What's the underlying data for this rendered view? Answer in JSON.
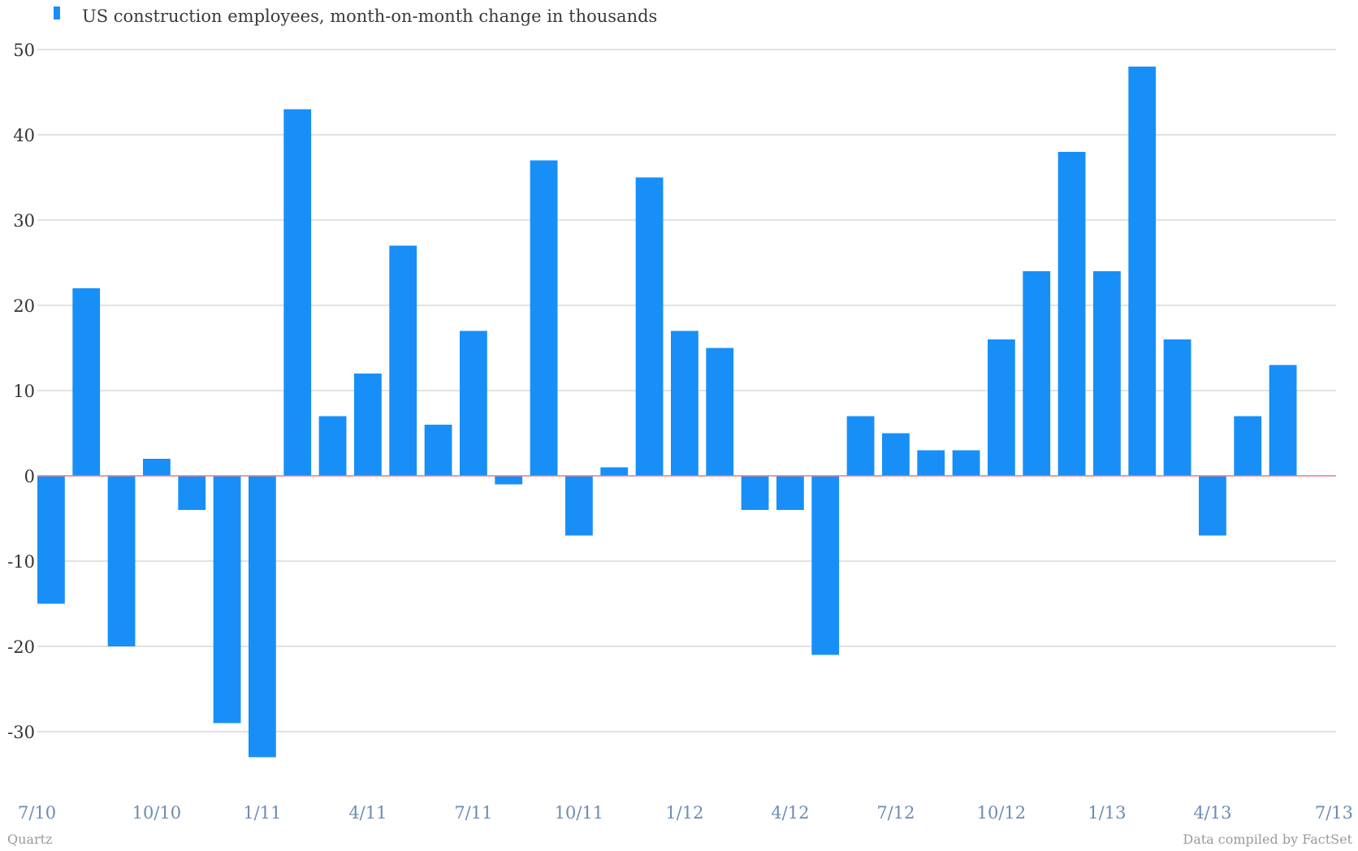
{
  "colors": {
    "bar": "#188ff7",
    "zero_line": "#e07b8e",
    "grid": "#c4c4c4",
    "x_tick_text": "#6b8cb3",
    "y_tick_text": "#333333",
    "credit_text": "#9a9a9a"
  },
  "legend": {
    "icon": "legend-swatch-icon",
    "label": "US construction employees, month-on-month change in thousands"
  },
  "footer": {
    "left": "Quartz",
    "right": "Data compiled by FactSet"
  },
  "chart_data": {
    "type": "bar",
    "title": "",
    "xlabel": "",
    "ylabel": "",
    "ylim": [
      -35,
      50
    ],
    "grid": true,
    "legend_position": "top-left",
    "y_ticks": [
      50,
      40,
      30,
      20,
      10,
      0,
      -10,
      -20,
      -30
    ],
    "y_tick_labels": [
      "50",
      "40",
      "30",
      "20",
      "10",
      "0",
      "-10",
      "-20",
      "-30"
    ],
    "x_tick_labels": [
      {
        "label": "7/10",
        "index": 0
      },
      {
        "label": "10/10",
        "index": 3
      },
      {
        "label": "1/11",
        "index": 6
      },
      {
        "label": "4/11",
        "index": 9
      },
      {
        "label": "7/11",
        "index": 12
      },
      {
        "label": "10/11",
        "index": 15
      },
      {
        "label": "1/12",
        "index": 18
      },
      {
        "label": "4/12",
        "index": 21
      },
      {
        "label": "7/12",
        "index": 24
      },
      {
        "label": "10/12",
        "index": 27
      },
      {
        "label": "1/13",
        "index": 30
      },
      {
        "label": "4/13",
        "index": 33
      },
      {
        "label": "7/13",
        "index": 36
      }
    ],
    "categories": [
      "7/10",
      "8/10",
      "9/10",
      "10/10",
      "11/10",
      "12/10",
      "1/11",
      "2/11",
      "3/11",
      "4/11",
      "5/11",
      "6/11",
      "7/11",
      "8/11",
      "9/11",
      "10/11",
      "11/11",
      "12/11",
      "1/12",
      "2/12",
      "3/12",
      "4/12",
      "5/12",
      "6/12",
      "7/12",
      "8/12",
      "9/12",
      "10/12",
      "11/12",
      "12/12",
      "1/13",
      "2/13",
      "3/13",
      "4/13",
      "5/13",
      "6/13",
      "7/13"
    ],
    "series": [
      {
        "name": "US construction employees, month-on-month change in thousands",
        "values": [
          -15,
          22,
          -20,
          2,
          -4,
          -29,
          -33,
          43,
          7,
          12,
          27,
          6,
          17,
          -1,
          37,
          -7,
          1,
          35,
          17,
          15,
          -4,
          -4,
          -21,
          7,
          5,
          3,
          3,
          16,
          24,
          38,
          24,
          48,
          16,
          -7,
          7,
          13,
          0
        ]
      }
    ]
  }
}
